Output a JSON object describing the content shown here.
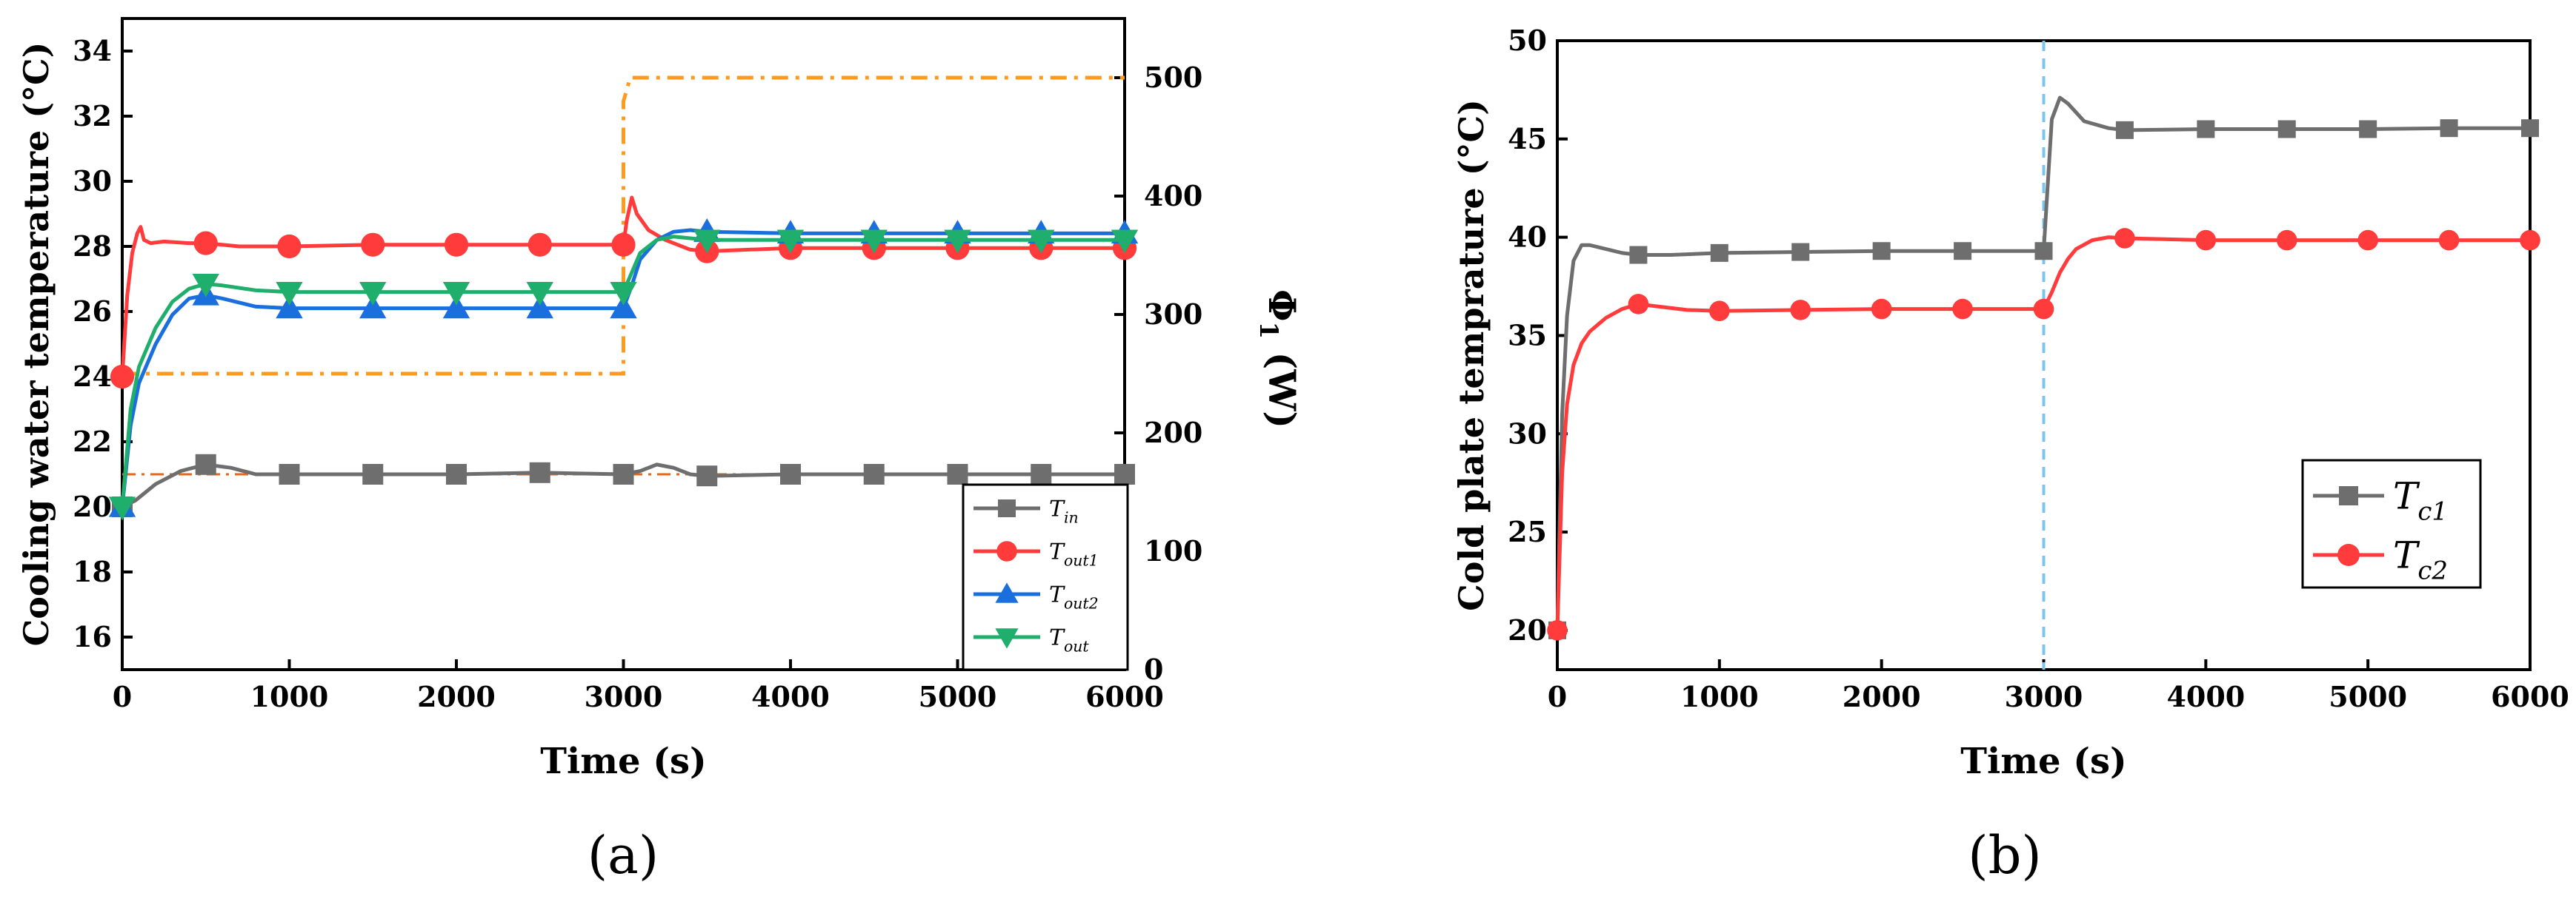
{
  "chart_data": [
    {
      "id": "a",
      "panel_label": "(a)",
      "type": "line",
      "xlabel": "Time (s)",
      "ylabel": "Cooling water temperature (°C)",
      "y2label": "Φ",
      "y2label_sub": "1",
      "y2label_unit": " (W)",
      "xlim": [
        0,
        6000
      ],
      "ylim": [
        15,
        35
      ],
      "y2lim": [
        0,
        550
      ],
      "xticks": [
        0,
        1000,
        2000,
        3000,
        4000,
        5000,
        6000
      ],
      "yticks": [
        16,
        18,
        20,
        22,
        24,
        26,
        28,
        30,
        32,
        34
      ],
      "y2ticks": [
        0,
        100,
        200,
        300,
        400,
        500
      ],
      "legend_position": "lower-right",
      "series": [
        {
          "name": "T",
          "sub": "in",
          "color": "#6e6e6e",
          "marker": "square",
          "x": [
            0,
            80,
            200,
            350,
            500,
            650,
            800,
            1000,
            1500,
            2000,
            2500,
            3000,
            3100,
            3200,
            3300,
            3400,
            3500,
            4000,
            4500,
            5000,
            5500,
            6000
          ],
          "y": [
            20.0,
            20.2,
            20.7,
            21.1,
            21.3,
            21.2,
            21.0,
            21.0,
            21.0,
            21.0,
            21.05,
            21.0,
            21.1,
            21.3,
            21.2,
            21.0,
            20.95,
            21.0,
            21.0,
            21.0,
            21.0,
            21.0
          ],
          "markers_x": [
            0,
            500,
            1000,
            1500,
            2000,
            2500,
            3000,
            3500,
            4000,
            4500,
            5000,
            5500,
            6000
          ],
          "markers_y": [
            20.0,
            21.3,
            21.0,
            21.0,
            21.0,
            21.05,
            21.0,
            20.95,
            21.0,
            21.0,
            21.0,
            21.0,
            21.0
          ]
        },
        {
          "name": "T",
          "sub": "out1",
          "color": "#ff3b3b",
          "marker": "circle",
          "x": [
            0,
            30,
            60,
            90,
            110,
            130,
            170,
            250,
            400,
            500,
            700,
            1000,
            1500,
            2000,
            2500,
            3000,
            3020,
            3050,
            3080,
            3150,
            3250,
            3400,
            3500,
            4000,
            4500,
            5000,
            5500,
            6000
          ],
          "y": [
            24.0,
            26.5,
            27.8,
            28.4,
            28.6,
            28.2,
            28.1,
            28.15,
            28.1,
            28.1,
            28.0,
            28.0,
            28.05,
            28.05,
            28.05,
            28.05,
            28.8,
            29.5,
            29.0,
            28.5,
            28.2,
            27.9,
            27.85,
            27.95,
            27.95,
            27.95,
            27.95,
            27.95
          ],
          "markers_x": [
            0,
            500,
            1000,
            1500,
            2000,
            2500,
            3000,
            3500,
            4000,
            4500,
            5000,
            5500,
            6000
          ],
          "markers_y": [
            24.0,
            28.1,
            28.0,
            28.05,
            28.05,
            28.05,
            28.05,
            27.85,
            27.95,
            27.95,
            27.95,
            27.95,
            27.95
          ]
        },
        {
          "name": "T",
          "sub": "out2",
          "color": "#1a6fdc",
          "marker": "triangle-up",
          "x": [
            0,
            50,
            100,
            200,
            300,
            400,
            500,
            600,
            800,
            1000,
            1500,
            2000,
            2500,
            3000,
            3050,
            3100,
            3200,
            3300,
            3400,
            3500,
            4000,
            4500,
            5000,
            5500,
            6000
          ],
          "y": [
            20.0,
            22.5,
            23.8,
            25.0,
            25.9,
            26.4,
            26.5,
            26.4,
            26.15,
            26.1,
            26.1,
            26.1,
            26.1,
            26.1,
            26.8,
            27.6,
            28.2,
            28.45,
            28.5,
            28.45,
            28.4,
            28.4,
            28.4,
            28.4,
            28.4
          ],
          "markers_x": [
            0,
            500,
            1000,
            1500,
            2000,
            2500,
            3000,
            3500,
            4000,
            4500,
            5000,
            5500,
            6000
          ],
          "markers_y": [
            20.0,
            26.5,
            26.1,
            26.1,
            26.1,
            26.1,
            26.1,
            28.45,
            28.4,
            28.4,
            28.4,
            28.4,
            28.4
          ]
        },
        {
          "name": "T",
          "sub": "out",
          "color": "#1fae6b",
          "marker": "triangle-down",
          "x": [
            0,
            50,
            100,
            200,
            300,
            400,
            500,
            600,
            800,
            1000,
            1500,
            2000,
            2500,
            3000,
            3050,
            3100,
            3200,
            3300,
            3400,
            3500,
            4000,
            4500,
            5000,
            5500,
            6000
          ],
          "y": [
            20.0,
            23.0,
            24.3,
            25.5,
            26.3,
            26.7,
            26.85,
            26.8,
            26.65,
            26.6,
            26.6,
            26.6,
            26.6,
            26.6,
            27.2,
            27.8,
            28.2,
            28.3,
            28.25,
            28.2,
            28.2,
            28.2,
            28.2,
            28.2,
            28.2
          ],
          "markers_x": [
            0,
            500,
            1000,
            1500,
            2000,
            2500,
            3000,
            3500,
            4000,
            4500,
            5000,
            5500,
            6000
          ],
          "markers_y": [
            20.0,
            26.85,
            26.6,
            26.6,
            26.6,
            26.6,
            26.6,
            28.2,
            28.2,
            28.2,
            28.2,
            28.2,
            28.2
          ]
        }
      ],
      "reference_line": {
        "y": 21.0,
        "color": "#e2661b",
        "style": "dash-dot",
        "unlabeled": true
      },
      "power_series": {
        "axis": "right",
        "color": "#ff9a1f",
        "style": "dash-dot",
        "x": [
          0,
          3000,
          3000,
          3040,
          6000
        ],
        "y": [
          250,
          250,
          480,
          500,
          500
        ]
      }
    },
    {
      "id": "b",
      "panel_label": "(b)",
      "type": "line",
      "xlabel": "Time (s)",
      "ylabel": "Cold plate temprature (°C)",
      "xlim": [
        0,
        6000
      ],
      "ylim": [
        18,
        50
      ],
      "xticks": [
        0,
        1000,
        2000,
        3000,
        4000,
        5000,
        6000
      ],
      "yticks": [
        20,
        25,
        30,
        35,
        40,
        45,
        50
      ],
      "legend_position": "lower-right",
      "vline": {
        "x": 3000,
        "color": "#7cc4e8",
        "style": "dashed"
      },
      "series": [
        {
          "name": "T",
          "sub": "c1",
          "color": "#6e6e6e",
          "marker": "square",
          "x": [
            0,
            30,
            60,
            100,
            150,
            200,
            300,
            400,
            500,
            700,
            1000,
            1500,
            2000,
            2500,
            3000,
            3020,
            3050,
            3100,
            3150,
            3250,
            3400,
            3500,
            4000,
            4500,
            5000,
            5500,
            6000
          ],
          "y": [
            20.0,
            31.0,
            36.0,
            38.8,
            39.6,
            39.6,
            39.4,
            39.2,
            39.1,
            39.1,
            39.2,
            39.25,
            39.3,
            39.3,
            39.3,
            42.0,
            46.0,
            47.1,
            46.8,
            45.9,
            45.55,
            45.45,
            45.5,
            45.5,
            45.5,
            45.55,
            45.55
          ],
          "markers_x": [
            0,
            500,
            1000,
            1500,
            2000,
            2500,
            3000,
            3500,
            4000,
            4500,
            5000,
            5500,
            6000
          ],
          "markers_y": [
            20.0,
            39.1,
            39.2,
            39.25,
            39.3,
            39.3,
            39.3,
            45.45,
            45.5,
            45.5,
            45.5,
            45.55,
            45.55
          ]
        },
        {
          "name": "T",
          "sub": "c2",
          "color": "#ff3b3b",
          "marker": "circle",
          "x": [
            0,
            30,
            60,
            100,
            150,
            200,
            300,
            400,
            500,
            600,
            800,
            1000,
            1500,
            2000,
            2500,
            3000,
            3050,
            3100,
            3150,
            3200,
            3300,
            3400,
            3500,
            4000,
            4500,
            5000,
            5500,
            6000
          ],
          "y": [
            20.0,
            28.0,
            31.5,
            33.5,
            34.6,
            35.2,
            35.9,
            36.35,
            36.6,
            36.5,
            36.3,
            36.25,
            36.3,
            36.35,
            36.35,
            36.35,
            37.2,
            38.2,
            38.9,
            39.4,
            39.85,
            40.0,
            39.95,
            39.85,
            39.85,
            39.85,
            39.85,
            39.85
          ],
          "markers_x": [
            0,
            500,
            1000,
            1500,
            2000,
            2500,
            3000,
            3500,
            4000,
            4500,
            5000,
            5500,
            6000
          ],
          "markers_y": [
            20.0,
            36.6,
            36.25,
            36.3,
            36.35,
            36.35,
            36.35,
            39.95,
            39.85,
            39.85,
            39.85,
            39.85,
            39.85
          ]
        }
      ]
    }
  ]
}
